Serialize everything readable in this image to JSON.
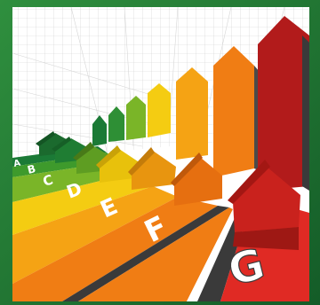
{
  "rating_letters": [
    "A",
    "B",
    "C",
    "D",
    "E",
    "F",
    "G"
  ],
  "colors": {
    "frame": "#1e7a34",
    "background": "#ffffff",
    "grid": "#cfcfcf",
    "dark_stripe": "#3a3a3a",
    "A": "#1b7a36",
    "B": "#3e9a2c",
    "C": "#7ab528",
    "D": "#f4cc12",
    "E": "#f5a314",
    "F": "#f07d14",
    "G": "#e02a24",
    "G_arrow": "#b21b1b",
    "letter_fill": "#ffffff"
  },
  "icons": [
    "house-icon",
    "arrow-icon"
  ]
}
